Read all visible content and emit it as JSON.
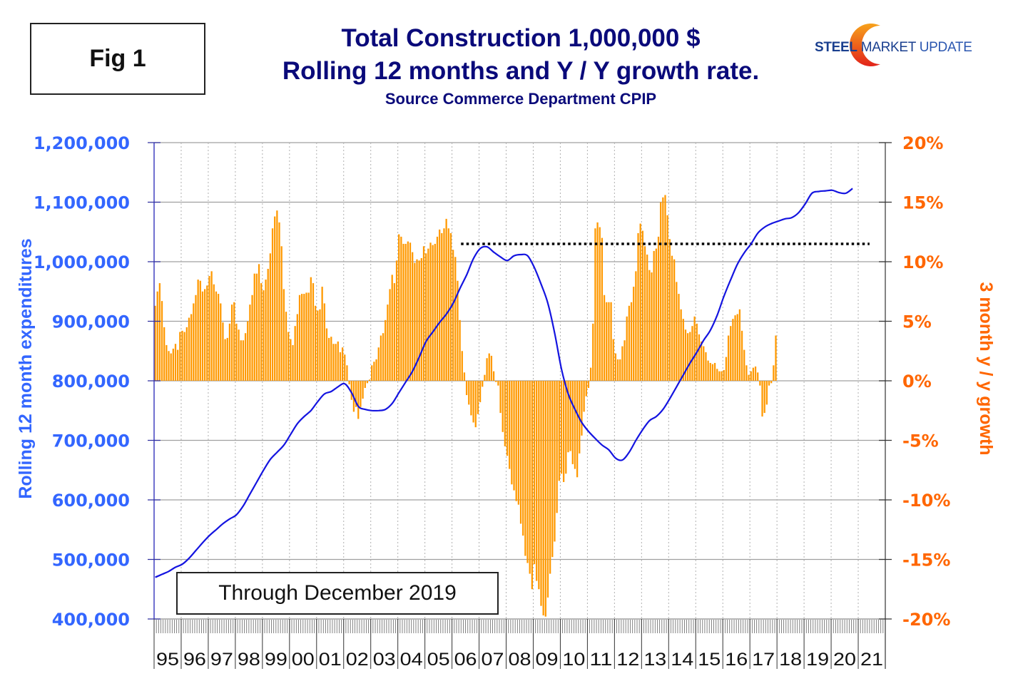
{
  "figure_label": "Fig 1",
  "header": {
    "title_line1": "Total Construction 1,000,000 $",
    "title_line2": "Rolling 12 months and Y / Y growth rate.",
    "subtitle": "Source Commerce Department CPIP"
  },
  "logo": {
    "word1": "STEEL",
    "word2": "MARKET",
    "word3": "UPDATE",
    "arc_colors": [
      "#f7a21b",
      "#e2231a"
    ]
  },
  "annotation": "Through December 2019",
  "colors": {
    "line": "#1414e0",
    "bars": "#ff9900",
    "left_axis_text": "#3366ff",
    "right_axis_text": "#ff6600",
    "title": "#0a0a7a",
    "reference_line": "#000000"
  },
  "chart_data": {
    "type": "bar+line",
    "title": "Total Construction 1,000,000 $ Rolling 12 months and Y / Y growth rate.",
    "subtitle": "Source Commerce Department CPIP",
    "x_axis": {
      "start": "1995-01",
      "end": "2021-12",
      "tick_labels": [
        "95",
        "96",
        "97",
        "98",
        "99",
        "00",
        "01",
        "02",
        "03",
        "04",
        "05",
        "06",
        "07",
        "08",
        "09",
        "10",
        "11",
        "12",
        "13",
        "14",
        "15",
        "16",
        "17",
        "18",
        "19",
        "20",
        "21"
      ],
      "grid": "dotted-vertical-per-year"
    },
    "y_left": {
      "label": "Rolling 12 month expenditures",
      "range": [
        400000,
        1200000
      ],
      "tick_labels": [
        "1,200,000",
        "1,100,000",
        "1,000,000",
        "900,000",
        "800,000",
        "700,000",
        "600,000",
        "500,000",
        "400,000"
      ],
      "ticks": [
        1200000,
        1100000,
        1000000,
        900000,
        800000,
        700000,
        600000,
        500000,
        400000
      ]
    },
    "y_right": {
      "label": "3 month y / y growth",
      "range": [
        -20,
        20
      ],
      "unit": "%",
      "tick_labels": [
        "20%",
        "15%",
        "10%",
        "5%",
        "0%",
        "-5%",
        "-10%",
        "-15%",
        "-20%"
      ],
      "ticks": [
        20,
        15,
        10,
        5,
        0,
        -5,
        -10,
        -15,
        -20
      ]
    },
    "reference_line": {
      "description": "dotted horizontal line at prior 2006 peak",
      "value": 1030000,
      "from": "2006-05",
      "to": "2021-06"
    },
    "series": [
      {
        "name": "Rolling 12 month expenditures",
        "type": "line",
        "axis": "left",
        "start": "1995-01",
        "step": "quarter",
        "values": [
          470000,
          475000,
          480000,
          487000,
          492000,
          502000,
          515000,
          528000,
          540000,
          550000,
          560000,
          568000,
          575000,
          590000,
          610000,
          630000,
          650000,
          668000,
          680000,
          692000,
          710000,
          728000,
          740000,
          750000,
          765000,
          778000,
          782000,
          790000,
          795000,
          780000,
          757000,
          752000,
          750000,
          750000,
          752000,
          762000,
          780000,
          798000,
          816000,
          840000,
          866000,
          882000,
          898000,
          912000,
          930000,
          955000,
          978000,
          1005000,
          1022000,
          1025000,
          1016000,
          1008000,
          1002000,
          1010000,
          1012000,
          1010000,
          990000,
          962000,
          930000,
          880000,
          820000,
          778000,
          752000,
          730000,
          715000,
          703000,
          692000,
          684000,
          670000,
          667000,
          680000,
          700000,
          718000,
          733000,
          740000,
          752000,
          770000,
          790000,
          810000,
          830000,
          848000,
          868000,
          885000,
          910000,
          942000,
          970000,
          996000,
          1015000,
          1030000,
          1048000,
          1058000,
          1064000,
          1068000,
          1072000,
          1074000,
          1082000,
          1097000,
          1115000,
          1118000,
          1119000,
          1120000,
          1116000,
          1115000,
          1123000
        ]
      },
      {
        "name": "3 month y / y growth",
        "type": "bar",
        "axis": "right",
        "unit": "%",
        "start": "1995-01",
        "step": "month",
        "values": [
          6.3,
          7.5,
          8.2,
          6.7,
          4.5,
          3.0,
          2.5,
          2.3,
          2.7,
          3.1,
          2.6,
          4.1,
          4.2,
          4.1,
          4.5,
          5.3,
          5.6,
          6.5,
          7.2,
          8.5,
          8.4,
          7.5,
          7.7,
          8.0,
          8.8,
          9.2,
          8.1,
          7.5,
          7.3,
          6.5,
          4.9,
          3.5,
          3.6,
          4.8,
          6.4,
          6.6,
          4.8,
          4.3,
          3.4,
          3.4,
          4.0,
          5.0,
          6.4,
          7.2,
          9.0,
          9.0,
          9.8,
          8.2,
          7.6,
          8.5,
          9.4,
          10.7,
          12.8,
          13.8,
          14.3,
          13.3,
          11.3,
          7.7,
          5.8,
          4.1,
          3.5,
          3.0,
          4.6,
          5.6,
          7.2,
          7.3,
          7.3,
          7.4,
          7.4,
          8.7,
          8.2,
          6.3,
          5.9,
          6.0,
          7.9,
          6.5,
          4.4,
          3.6,
          3.7,
          3.1,
          3.1,
          3.3,
          2.4,
          2.8,
          2.2,
          1.3,
          -0.3,
          -1.6,
          -2.6,
          -2.2,
          -3.2,
          -2.2,
          -1.5,
          -0.6,
          -0.2,
          0.1,
          1.3,
          1.6,
          1.8,
          2.8,
          3.8,
          4.0,
          5.1,
          6.4,
          7.7,
          8.9,
          8.2,
          10.1,
          12.3,
          12.1,
          11.5,
          11.5,
          11.7,
          11.6,
          10.8,
          9.9,
          10.2,
          10.1,
          10.3,
          11.3,
          10.7,
          11.1,
          11.6,
          11.4,
          11.5,
          12.1,
          12.7,
          12.4,
          12.8,
          13.6,
          12.8,
          12.4,
          11.0,
          10.4,
          8.4,
          5.1,
          2.5,
          0.7,
          -1.2,
          -2.0,
          -2.9,
          -3.5,
          -3.9,
          -2.8,
          -1.8,
          -0.5,
          0.5,
          1.9,
          2.3,
          2.1,
          0.8,
          -0.1,
          -0.4,
          -2.7,
          -4.3,
          -5.5,
          -6.3,
          -7.4,
          -8.7,
          -9.2,
          -10.1,
          -10.4,
          -12.0,
          -13.0,
          -14.7,
          -15.3,
          -16.2,
          -17.5,
          -15.4,
          -16.8,
          -17.5,
          -18.9,
          -19.7,
          -19.8,
          -18.2,
          -16.2,
          -14.8,
          -13.5,
          -11.1,
          -8.4,
          -7.8,
          -8.5,
          -7.8,
          -6.0,
          -5.9,
          -7.0,
          -7.4,
          -8.1,
          -6.1,
          -4.6,
          -2.6,
          -1.3,
          -0.6,
          1.1,
          4.8,
          12.8,
          13.3,
          12.9,
          12.0,
          7.2,
          6.6,
          6.6,
          6.6,
          3.5,
          2.3,
          1.8,
          1.8,
          2.9,
          3.4,
          5.4,
          6.3,
          6.6,
          7.9,
          9.2,
          12.4,
          13.2,
          12.6,
          11.3,
          10.6,
          9.3,
          9.1,
          10.9,
          11.1,
          12.1,
          15.0,
          15.4,
          15.6,
          13.9,
          11.9,
          10.5,
          10.2,
          8.3,
          7.3,
          6.0,
          5.2,
          4.3,
          4.0,
          4.1,
          4.6,
          5.4,
          4.8,
          3.9,
          3.3,
          2.9,
          2.4,
          1.7,
          1.5,
          1.4,
          1.5,
          1.0,
          0.8,
          0.8,
          0.9,
          2.0,
          3.8,
          4.6,
          5.2,
          5.5,
          5.6,
          6.0,
          4.2,
          2.6,
          1.3,
          0.5,
          0.8,
          1.1,
          1.2,
          0.7,
          -0.4,
          -3.0,
          -2.7,
          -2.0,
          -0.4,
          -0.2,
          1.3,
          3.8
        ]
      }
    ]
  }
}
